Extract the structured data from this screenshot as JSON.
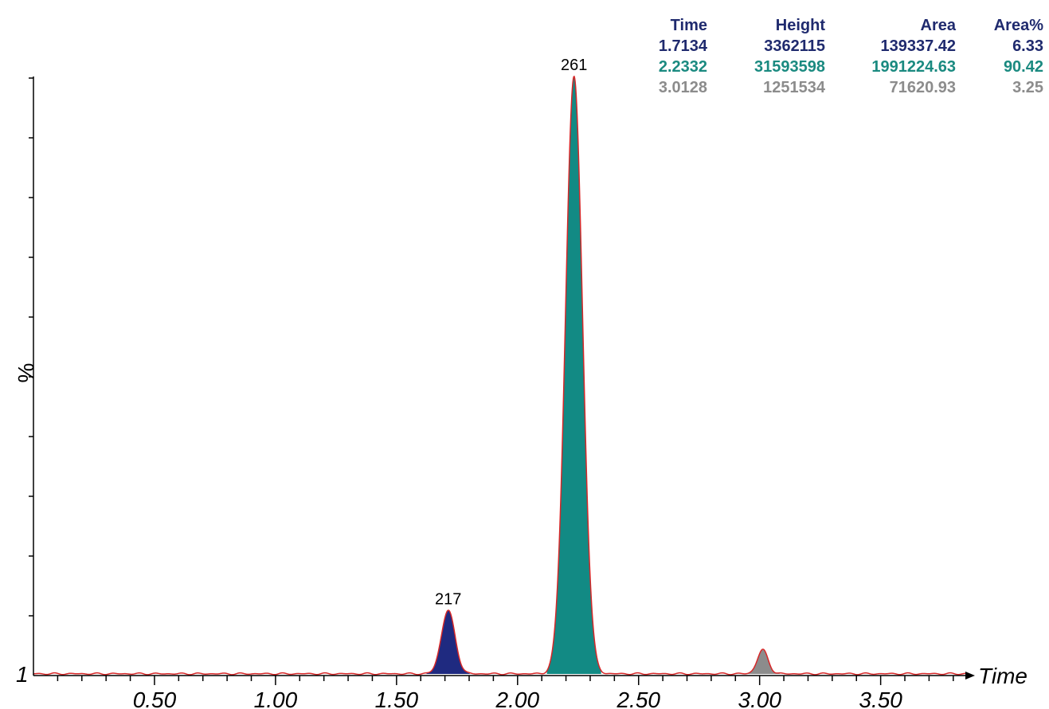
{
  "chart_data": {
    "type": "line",
    "xlabel": "Time",
    "ylabel": "%",
    "y_min_label": "1",
    "xlim": [
      0.0,
      3.85
    ],
    "ylim": [
      0,
      100
    ],
    "x_ticks": [
      "0.50",
      "1.00",
      "1.50",
      "2.00",
      "2.50",
      "3.00",
      "3.50"
    ],
    "x_tick_values": [
      0.5,
      1.0,
      1.5,
      2.0,
      2.5,
      3.0,
      3.5
    ],
    "trace_color": "#d62728",
    "peaks": [
      {
        "label": "217",
        "time": 1.7134,
        "height": 3362115,
        "area": 139337.42,
        "area_pct": 6.33,
        "width": 0.028,
        "rel_height": 10.6,
        "color": "#1f2a80",
        "text_color": "#1f2a6e",
        "labeled": true
      },
      {
        "label": "261",
        "time": 2.2332,
        "height": 31593598,
        "area": 1991224.63,
        "area_pct": 90.42,
        "width": 0.035,
        "rel_height": 100,
        "color": "#128a84",
        "text_color": "#1a8a80",
        "labeled": true
      },
      {
        "label": "",
        "time": 3.0128,
        "height": 1251534,
        "area": 71620.93,
        "area_pct": 3.25,
        "width": 0.022,
        "rel_height": 4.0,
        "color": "#8c8c8c",
        "text_color": "#8c8c8c",
        "labeled": false
      }
    ],
    "table": {
      "headers": [
        "Time",
        "Height",
        "Area",
        "Area%"
      ],
      "header_color": "#1f2a6e",
      "rows": [
        [
          "1.7134",
          "3362115",
          "139337.42",
          "6.33"
        ],
        [
          "2.2332",
          "31593598",
          "1991224.63",
          "90.42"
        ],
        [
          "3.0128",
          "1251534",
          "71620.93",
          "3.25"
        ]
      ]
    }
  }
}
